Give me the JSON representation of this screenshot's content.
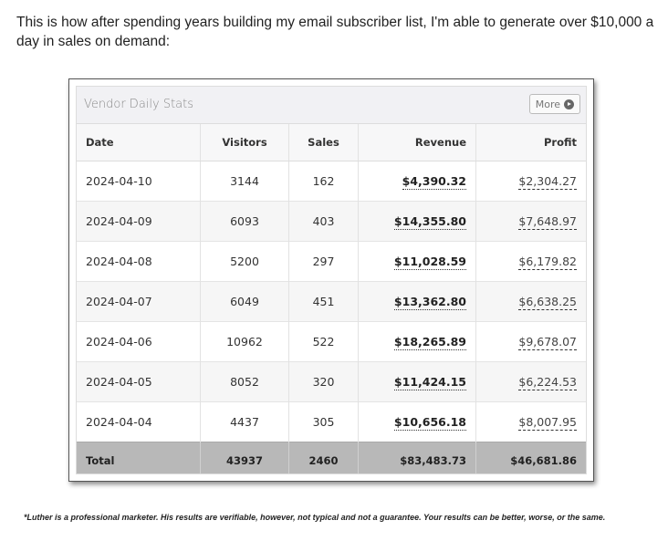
{
  "intro": "This is how after spending years building my email subscriber list, I'm able to generate over $10,000 a day in sales on demand:",
  "panel": {
    "title": "Vendor Daily Stats",
    "more_label": "More",
    "more_icon": "chevron-circle-right-icon"
  },
  "table": {
    "headers": {
      "date": "Date",
      "visitors": "Visitors",
      "sales": "Sales",
      "revenue": "Revenue",
      "profit": "Profit"
    },
    "rows": [
      {
        "date": "2024-04-10",
        "visitors": "3144",
        "sales": "162",
        "revenue": "$4,390.32",
        "profit": "$2,304.27"
      },
      {
        "date": "2024-04-09",
        "visitors": "6093",
        "sales": "403",
        "revenue": "$14,355.80",
        "profit": "$7,648.97"
      },
      {
        "date": "2024-04-08",
        "visitors": "5200",
        "sales": "297",
        "revenue": "$11,028.59",
        "profit": "$6,179.82"
      },
      {
        "date": "2024-04-07",
        "visitors": "6049",
        "sales": "451",
        "revenue": "$13,362.80",
        "profit": "$6,638.25"
      },
      {
        "date": "2024-04-06",
        "visitors": "10962",
        "sales": "522",
        "revenue": "$18,265.89",
        "profit": "$9,678.07"
      },
      {
        "date": "2024-04-05",
        "visitors": "8052",
        "sales": "320",
        "revenue": "$11,424.15",
        "profit": "$6,224.53"
      },
      {
        "date": "2024-04-04",
        "visitors": "4437",
        "sales": "305",
        "revenue": "$10,656.18",
        "profit": "$8,007.95"
      }
    ],
    "total": {
      "label": "Total",
      "visitors": "43937",
      "sales": "2460",
      "revenue": "$83,483.73",
      "profit": "$46,681.86"
    }
  },
  "disclaimer": "*Luther is a professional marketer. His results are verifiable, however, not typical and not a guarantee. Your results can be better, worse, or the same."
}
